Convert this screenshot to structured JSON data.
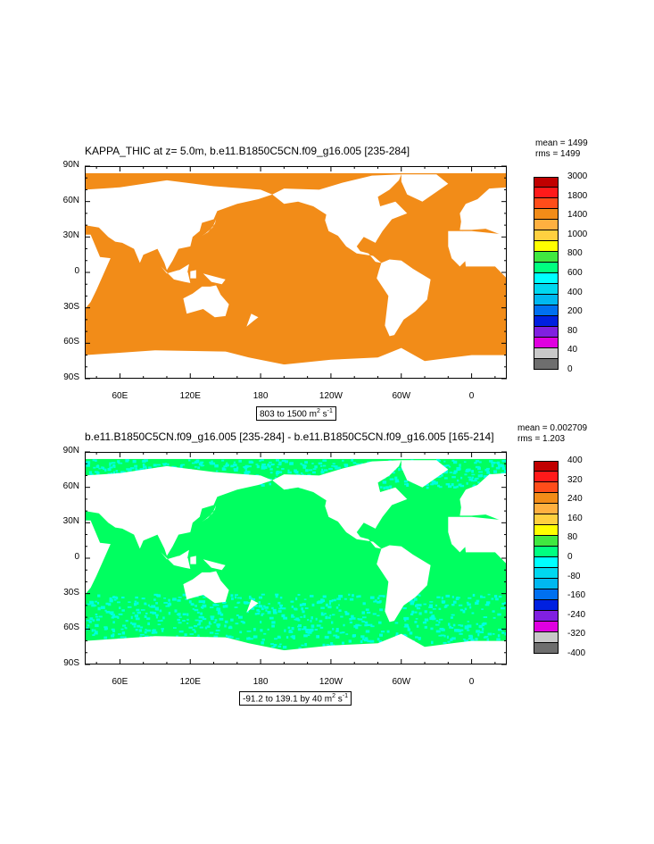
{
  "panels": [
    {
      "title": "KAPPA_THIC at z=   5.0m, b.e11.B1850C5CN.f09_g16.005 [235-284]",
      "stats": "mean = 1499\nrms = 1499",
      "range_label": "803 to 1500 m",
      "range_unit_sup1": "2",
      "range_unit_mid": " s",
      "range_unit_sup2": "-1",
      "ocean_color": "#f28c18",
      "colorbar_labels": [
        "3000",
        "1800",
        "1400",
        "1000",
        "800",
        "600",
        "400",
        "200",
        "80",
        "40",
        "0"
      ],
      "colorbar_colors": [
        "#c00000",
        "#ff1a1a",
        "#ff4d1a",
        "#f28c18",
        "#ffb040",
        "#ffd040",
        "#ffff00",
        "#40e840",
        "#00ff80",
        "#00ffff",
        "#00d8f0",
        "#00b8f0",
        "#0070f0",
        "#0020e0",
        "#8020e0",
        "#e000e0",
        "#c8c8c8",
        "#6e6e6e"
      ]
    },
    {
      "title": "b.e11.B1850C5CN.f09_g16.005 [235-284] - b.e11.B1850C5CN.f09_g16.005 [165-214]",
      "stats": "mean = 0.002709\nrms = 1.203",
      "range_label": "-91.2 to 139.1 by 40 m",
      "range_unit_sup1": "2",
      "range_unit_mid": " s",
      "range_unit_sup2": "-1",
      "ocean_color": "#00ff60",
      "speckle_color": "#00ffe0",
      "colorbar_labels": [
        "400",
        "320",
        "240",
        "160",
        "80",
        "0",
        "-80",
        "-160",
        "-240",
        "-320",
        "-400"
      ],
      "colorbar_colors": [
        "#c00000",
        "#ff1a1a",
        "#ff4d1a",
        "#f28c18",
        "#ffb040",
        "#ffd040",
        "#ffff00",
        "#40e840",
        "#00ff80",
        "#00ffff",
        "#00d8f0",
        "#00b8f0",
        "#0070f0",
        "#0020e0",
        "#8020e0",
        "#e000e0",
        "#c8c8c8",
        "#6e6e6e"
      ]
    }
  ],
  "lat_labels": [
    "90N",
    "60N",
    "30N",
    "0",
    "30S",
    "60S",
    "90S"
  ],
  "lon_labels": [
    "60E",
    "120E",
    "180",
    "120W",
    "60W",
    "0"
  ]
}
